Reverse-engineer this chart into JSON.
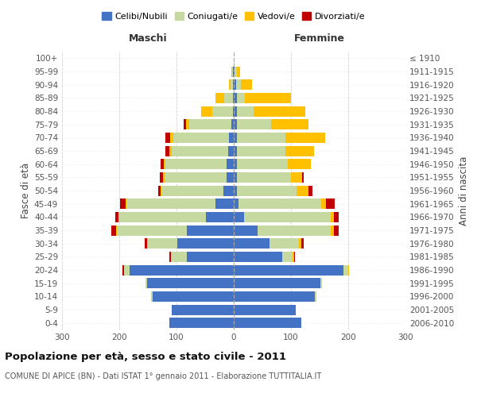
{
  "age_groups": [
    "0-4",
    "5-9",
    "10-14",
    "15-19",
    "20-24",
    "25-29",
    "30-34",
    "35-39",
    "40-44",
    "45-49",
    "50-54",
    "55-59",
    "60-64",
    "65-69",
    "70-74",
    "75-79",
    "80-84",
    "85-89",
    "90-94",
    "95-99",
    "100+"
  ],
  "birth_years": [
    "2006-2010",
    "2001-2005",
    "1996-2000",
    "1991-1995",
    "1986-1990",
    "1981-1985",
    "1976-1980",
    "1971-1975",
    "1966-1970",
    "1961-1965",
    "1956-1960",
    "1951-1955",
    "1946-1950",
    "1941-1945",
    "1936-1940",
    "1931-1935",
    "1926-1930",
    "1921-1925",
    "1916-1920",
    "1911-1915",
    "≤ 1910"
  ],
  "males": {
    "celibi": [
      112,
      108,
      142,
      152,
      182,
      82,
      98,
      82,
      48,
      32,
      18,
      13,
      12,
      10,
      8,
      4,
      2,
      2,
      1,
      1,
      0
    ],
    "coniugati": [
      0,
      0,
      2,
      2,
      10,
      28,
      52,
      122,
      152,
      155,
      108,
      108,
      108,
      98,
      98,
      74,
      35,
      15,
      5,
      2,
      0
    ],
    "vedovi": [
      0,
      0,
      0,
      0,
      0,
      0,
      2,
      2,
      2,
      2,
      2,
      2,
      2,
      5,
      5,
      5,
      20,
      15,
      3,
      1,
      0
    ],
    "divorziati": [
      0,
      0,
      0,
      0,
      2,
      2,
      4,
      8,
      5,
      10,
      4,
      6,
      6,
      6,
      8,
      5,
      0,
      0,
      0,
      0,
      0
    ]
  },
  "females": {
    "nubili": [
      118,
      108,
      142,
      152,
      192,
      85,
      62,
      42,
      18,
      8,
      5,
      5,
      5,
      5,
      5,
      5,
      5,
      5,
      4,
      2,
      0
    ],
    "coniugate": [
      0,
      0,
      2,
      2,
      8,
      18,
      52,
      128,
      152,
      145,
      105,
      95,
      90,
      85,
      85,
      60,
      30,
      15,
      8,
      4,
      0
    ],
    "vedove": [
      0,
      0,
      0,
      0,
      2,
      2,
      4,
      5,
      5,
      8,
      20,
      20,
      40,
      50,
      70,
      65,
      90,
      80,
      20,
      5,
      0
    ],
    "divorziate": [
      0,
      0,
      0,
      0,
      0,
      2,
      4,
      8,
      8,
      15,
      8,
      2,
      0,
      0,
      0,
      0,
      0,
      0,
      0,
      0,
      0
    ]
  },
  "colors": {
    "celibi": "#4472c4",
    "coniugati": "#c5d9a0",
    "vedovi": "#ffc000",
    "divorziati": "#c00000"
  },
  "title": "Popolazione per età, sesso e stato civile - 2011",
  "subtitle": "COMUNE DI APICE (BN) - Dati ISTAT 1° gennaio 2011 - Elaborazione TUTTITALIA.IT",
  "xlabel_left": "Maschi",
  "xlabel_right": "Femmine",
  "ylabel_left": "Fasce di età",
  "ylabel_right": "Anni di nascita",
  "xlim": 300,
  "legend_labels": [
    "Celibi/Nubili",
    "Coniugati/e",
    "Vedovi/e",
    "Divorziati/e"
  ],
  "bg_color": "#ffffff",
  "grid_color": "#cccccc"
}
